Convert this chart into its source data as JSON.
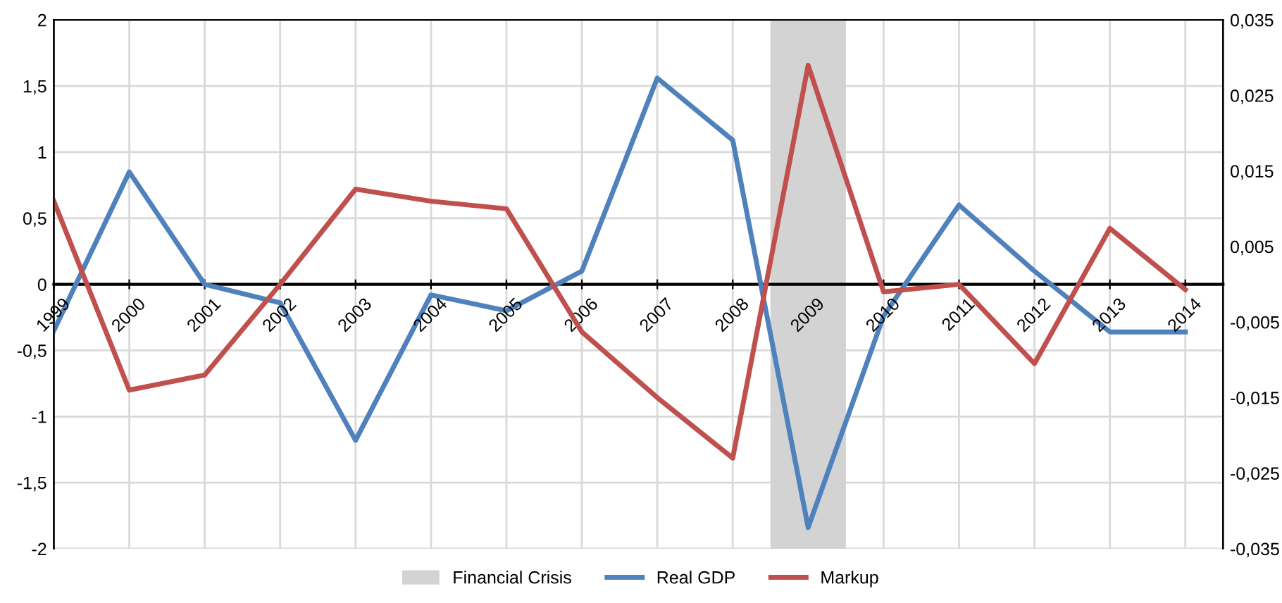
{
  "chart_data": {
    "type": "line",
    "x": [
      1999,
      2000,
      2001,
      2002,
      2003,
      2004,
      2005,
      2006,
      2007,
      2008,
      2009,
      2010,
      2011,
      2012,
      2013,
      2014
    ],
    "xlim": [
      1999,
      2014.5
    ],
    "xticks": [
      1999,
      2000,
      2001,
      2002,
      2003,
      2004,
      2005,
      2006,
      2007,
      2008,
      2009,
      2010,
      2011,
      2012,
      2013,
      2014
    ],
    "series": [
      {
        "name": "Real GDP",
        "color": "#4f81bd",
        "values": [
          -0.35,
          0.85,
          0.0,
          -0.14,
          -1.18,
          -0.08,
          -0.2,
          0.1,
          1.56,
          1.09,
          -1.84,
          -0.24,
          0.6,
          0.1,
          -0.36,
          -0.36
        ]
      },
      {
        "name": "Markup",
        "color": "#c0504d",
        "axis": "y2",
        "values": [
          0.011,
          -0.014,
          -0.012,
          0.0,
          0.0126,
          0.011,
          0.01,
          -0.0063,
          -0.015,
          -0.023,
          0.029,
          -0.001,
          0.0,
          -0.0105,
          0.0074,
          -0.0007
        ]
      }
    ],
    "ylim": [
      -2,
      2
    ],
    "yticks": [
      {
        "value": -2,
        "label": "-2"
      },
      {
        "value": -1.5,
        "label": "-1,5"
      },
      {
        "value": -1,
        "label": "-1"
      },
      {
        "value": -0.5,
        "label": "-0,5"
      },
      0,
      {
        "value": 0.5,
        "label": "0,5"
      },
      1,
      {
        "value": 1.5,
        "label": "1,5"
      },
      2
    ],
    "y2lim": [
      -0.035,
      0.035
    ],
    "y2ticks": [
      {
        "value": -0.035,
        "label": "-0,035"
      },
      {
        "value": -0.025,
        "label": "-0,025"
      },
      {
        "value": -0.015,
        "label": "-0,015"
      },
      {
        "value": -0.005,
        "label": "-0,005"
      },
      {
        "value": 0.005,
        "label": "0,005"
      },
      {
        "value": 0.015,
        "label": "0,015"
      },
      {
        "value": 0.025,
        "label": "0,025"
      },
      {
        "value": 0.035,
        "label": "0,035"
      }
    ],
    "bands": [
      {
        "axis": "x",
        "from": 2008.5,
        "to": 2009.5,
        "label": "Financial Crisis",
        "color": "#d3d3d3"
      }
    ],
    "grid": true,
    "legend": "bottom",
    "line_style": "solid",
    "marker": "none"
  }
}
